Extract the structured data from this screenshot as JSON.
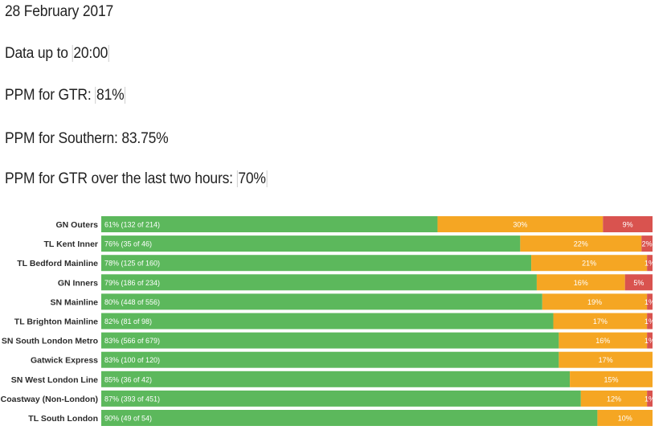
{
  "info": {
    "date": "28 February 2017",
    "data_prefix": "Data up to ",
    "data_time": "20:00",
    "gtr_prefix": "PPM for GTR: ",
    "gtr_value": "81%",
    "southern_text": "PPM for Southern: 83.75%",
    "twohours_prefix": "PPM for GTR over the last two hours: ",
    "twohours_value": "70%"
  },
  "colors": {
    "on_time": "#5cb85c",
    "late": "#f5a623",
    "very_late": "#d9534f"
  },
  "chart_data": {
    "type": "bar",
    "orientation": "horizontal",
    "stacked": true,
    "xlim": [
      0,
      100
    ],
    "categories": [
      "GN Outers",
      "TL Kent Inner",
      "TL Bedford Mainline",
      "GN Inners",
      "SN Mainline",
      "TL Brighton Mainline",
      "SN South London Metro",
      "Gatwick Express",
      "SN West London Line",
      "SN Coastway (Non-London)",
      "TL South London"
    ],
    "series": [
      {
        "values": [
          61,
          76,
          78,
          79,
          80,
          82,
          83,
          83,
          85,
          87,
          90
        ],
        "labels": [
          "61% (132 of 214)",
          "76% (35 of 46)",
          "78% (125 of 160)",
          "79% (186 of 234)",
          "80% (448 of 556)",
          "82% (81 of 98)",
          "83% (566 of 679)",
          "83% (100 of 120)",
          "85% (36 of 42)",
          "87% (393 of 451)",
          "90% (49 of 54)"
        ]
      },
      {
        "values": [
          30,
          22,
          21,
          16,
          19,
          17,
          16,
          17,
          15,
          12,
          10
        ],
        "labels": [
          "30%",
          "22%",
          "21%",
          "16%",
          "19%",
          "17%",
          "16%",
          "17%",
          "15%",
          "12%",
          "10%"
        ]
      },
      {
        "values": [
          9,
          2,
          1,
          5,
          1,
          1,
          1,
          0,
          0,
          1,
          0
        ],
        "labels": [
          "9%",
          "2%",
          "1%",
          "5%",
          "1%",
          "1%",
          "1%",
          "",
          "",
          "1%",
          ""
        ]
      }
    ]
  }
}
